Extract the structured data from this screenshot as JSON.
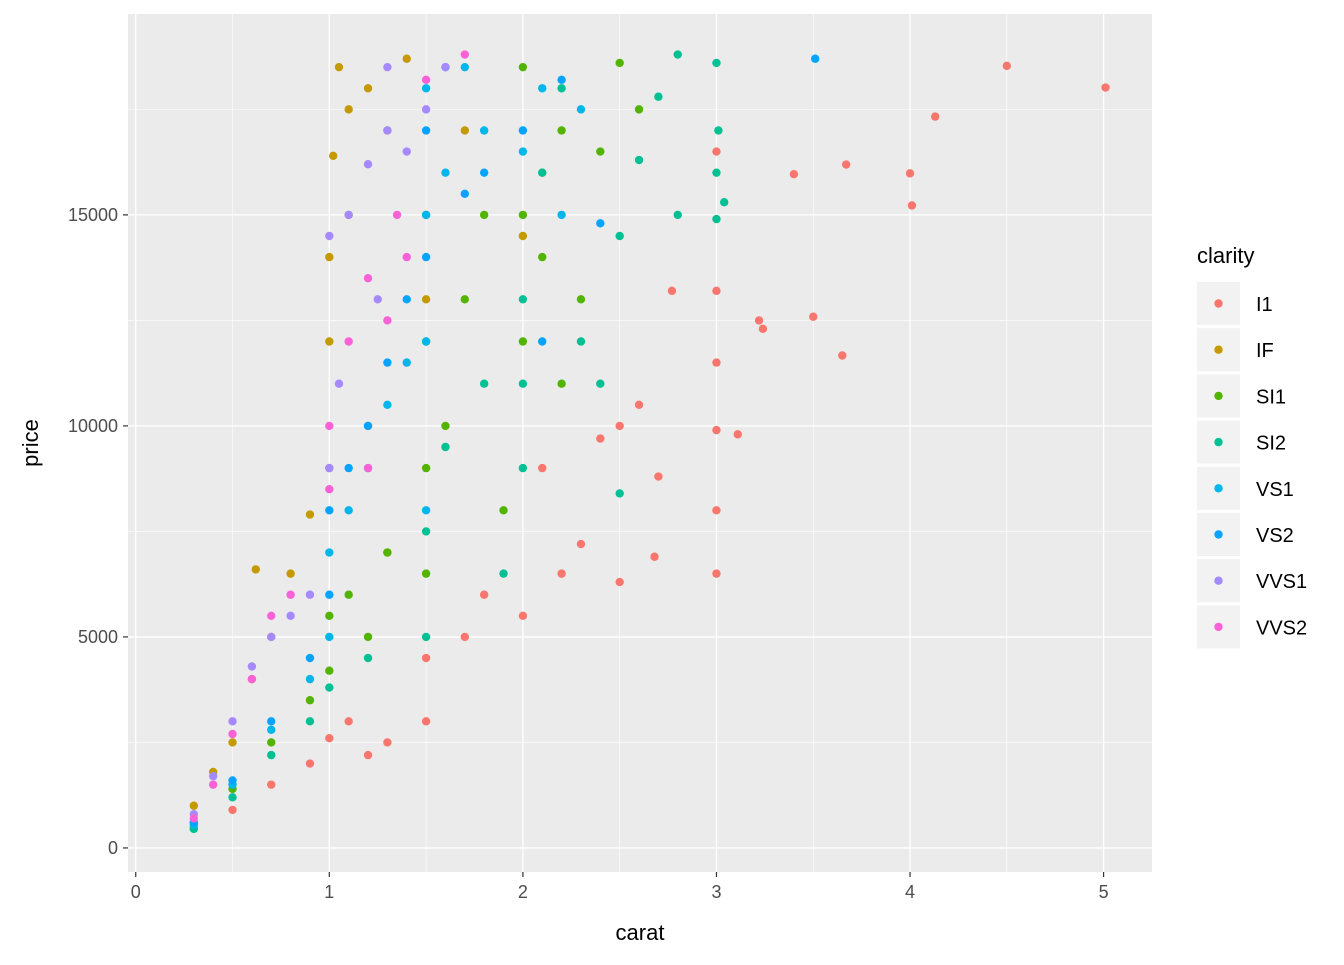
{
  "chart_data": {
    "type": "scatter",
    "title": "",
    "xlabel": "carat",
    "ylabel": "price",
    "xlim": [
      -0.04,
      5.25
    ],
    "ylim": [
      -570,
      19760
    ],
    "xticks": [
      0,
      1,
      2,
      3,
      4,
      5
    ],
    "yticks": [
      0,
      5000,
      10000,
      15000
    ],
    "grid": true,
    "legend": {
      "title": "clarity",
      "position": "right"
    },
    "series": [
      {
        "name": "I1",
        "color": "#F8766D",
        "points": [
          [
            0.3,
            500
          ],
          [
            0.5,
            900
          ],
          [
            0.7,
            1500
          ],
          [
            0.9,
            2000
          ],
          [
            1.0,
            2600
          ],
          [
            1.1,
            3000
          ],
          [
            1.2,
            2200
          ],
          [
            1.3,
            2500
          ],
          [
            1.5,
            3000
          ],
          [
            1.5,
            4500
          ],
          [
            1.7,
            5000
          ],
          [
            1.8,
            6000
          ],
          [
            2.0,
            5500
          ],
          [
            2.2,
            6500
          ],
          [
            2.3,
            7200
          ],
          [
            2.1,
            9000
          ],
          [
            2.4,
            9700
          ],
          [
            2.5,
            6300
          ],
          [
            2.5,
            10000
          ],
          [
            2.6,
            10500
          ],
          [
            2.68,
            6900
          ],
          [
            2.7,
            8800
          ],
          [
            2.77,
            13200
          ],
          [
            3.0,
            6500
          ],
          [
            3.0,
            8000
          ],
          [
            3.0,
            9900
          ],
          [
            3.0,
            11500
          ],
          [
            3.0,
            13200
          ],
          [
            3.0,
            16500
          ],
          [
            3.11,
            9800
          ],
          [
            3.22,
            12500
          ],
          [
            3.24,
            12300
          ],
          [
            3.4,
            15964
          ],
          [
            3.5,
            12587
          ],
          [
            3.65,
            11668
          ],
          [
            3.67,
            16193
          ],
          [
            4.0,
            15984
          ],
          [
            4.01,
            15223
          ],
          [
            4.13,
            17329
          ],
          [
            4.5,
            18531
          ],
          [
            5.01,
            18018
          ]
        ]
      },
      {
        "name": "IF",
        "color": "#C49A00",
        "points": [
          [
            0.3,
            1000
          ],
          [
            0.4,
            1800
          ],
          [
            0.5,
            2500
          ],
          [
            0.6,
            4000
          ],
          [
            0.62,
            6600
          ],
          [
            0.7,
            5000
          ],
          [
            0.8,
            6500
          ],
          [
            0.9,
            7900
          ],
          [
            1.0,
            9000
          ],
          [
            1.0,
            12000
          ],
          [
            1.0,
            14000
          ],
          [
            1.02,
            16400
          ],
          [
            1.05,
            18500
          ],
          [
            1.1,
            15000
          ],
          [
            1.1,
            17500
          ],
          [
            1.2,
            10000
          ],
          [
            1.2,
            18000
          ],
          [
            1.3,
            7000
          ],
          [
            1.3,
            17000
          ],
          [
            1.4,
            18700
          ],
          [
            1.5,
            13000
          ],
          [
            1.7,
            17000
          ],
          [
            2.0,
            14500
          ],
          [
            2.1,
            16000
          ]
        ]
      },
      {
        "name": "SI1",
        "color": "#53B400",
        "points": [
          [
            0.3,
            600
          ],
          [
            0.5,
            1400
          ],
          [
            0.7,
            2500
          ],
          [
            0.9,
            3500
          ],
          [
            1.0,
            4200
          ],
          [
            1.0,
            5500
          ],
          [
            1.1,
            6000
          ],
          [
            1.2,
            5000
          ],
          [
            1.3,
            7000
          ],
          [
            1.5,
            6500
          ],
          [
            1.5,
            9000
          ],
          [
            1.5,
            12000
          ],
          [
            1.5,
            15000
          ],
          [
            1.6,
            10000
          ],
          [
            1.7,
            13000
          ],
          [
            1.8,
            15000
          ],
          [
            1.9,
            8000
          ],
          [
            2.0,
            12000
          ],
          [
            2.0,
            15000
          ],
          [
            2.0,
            18500
          ],
          [
            2.1,
            14000
          ],
          [
            2.2,
            11000
          ],
          [
            2.2,
            17000
          ],
          [
            2.3,
            13000
          ],
          [
            2.4,
            16500
          ],
          [
            2.5,
            18600
          ],
          [
            2.6,
            17500
          ]
        ]
      },
      {
        "name": "SI2",
        "color": "#00C094",
        "points": [
          [
            0.3,
            450
          ],
          [
            0.5,
            1200
          ],
          [
            0.7,
            2200
          ],
          [
            0.9,
            3000
          ],
          [
            1.0,
            3800
          ],
          [
            1.2,
            4500
          ],
          [
            1.5,
            5000
          ],
          [
            1.5,
            7500
          ],
          [
            1.6,
            9500
          ],
          [
            1.8,
            11000
          ],
          [
            1.9,
            6500
          ],
          [
            2.0,
            9000
          ],
          [
            2.0,
            11000
          ],
          [
            2.0,
            13000
          ],
          [
            2.1,
            16000
          ],
          [
            2.2,
            18000
          ],
          [
            2.3,
            12000
          ],
          [
            2.4,
            11000
          ],
          [
            2.5,
            8400
          ],
          [
            2.5,
            14500
          ],
          [
            2.6,
            16300
          ],
          [
            2.7,
            17800
          ],
          [
            2.8,
            18800
          ],
          [
            2.8,
            15000
          ],
          [
            3.0,
            14900
          ],
          [
            3.0,
            16000
          ],
          [
            3.01,
            17000
          ],
          [
            3.04,
            15300
          ],
          [
            3.0,
            18600
          ]
        ]
      },
      {
        "name": "VS1",
        "color": "#00B6EB",
        "points": [
          [
            0.3,
            550
          ],
          [
            0.5,
            1500
          ],
          [
            0.7,
            2800
          ],
          [
            0.9,
            4000
          ],
          [
            1.0,
            5000
          ],
          [
            1.0,
            7000
          ],
          [
            1.1,
            8000
          ],
          [
            1.2,
            9000
          ],
          [
            1.3,
            10500
          ],
          [
            1.4,
            11500
          ],
          [
            1.5,
            8000
          ],
          [
            1.5,
            12000
          ],
          [
            1.5,
            15000
          ],
          [
            1.5,
            18000
          ],
          [
            1.6,
            16000
          ],
          [
            1.7,
            18500
          ],
          [
            1.8,
            17000
          ],
          [
            2.0,
            16500
          ],
          [
            2.1,
            18000
          ],
          [
            2.2,
            15000
          ],
          [
            2.3,
            17500
          ]
        ]
      },
      {
        "name": "VS2",
        "color": "#06A4FF",
        "points": [
          [
            0.3,
            600
          ],
          [
            0.5,
            1600
          ],
          [
            0.7,
            3000
          ],
          [
            0.9,
            4500
          ],
          [
            1.0,
            6000
          ],
          [
            1.0,
            8000
          ],
          [
            1.1,
            9000
          ],
          [
            1.2,
            10000
          ],
          [
            1.3,
            11500
          ],
          [
            1.4,
            13000
          ],
          [
            1.5,
            14000
          ],
          [
            1.5,
            17000
          ],
          [
            1.6,
            18500
          ],
          [
            1.7,
            15500
          ],
          [
            1.8,
            16000
          ],
          [
            2.0,
            17000
          ],
          [
            2.1,
            12000
          ],
          [
            2.2,
            18200
          ],
          [
            2.4,
            14800
          ],
          [
            3.51,
            18700
          ]
        ]
      },
      {
        "name": "VVS1",
        "color": "#A58AFF",
        "points": [
          [
            0.3,
            800
          ],
          [
            0.4,
            1700
          ],
          [
            0.5,
            3000
          ],
          [
            0.6,
            4300
          ],
          [
            0.7,
            5000
          ],
          [
            0.8,
            5500
          ],
          [
            0.9,
            6000
          ],
          [
            1.0,
            9000
          ],
          [
            1.0,
            14500
          ],
          [
            1.05,
            11000
          ],
          [
            1.1,
            15000
          ],
          [
            1.2,
            16200
          ],
          [
            1.25,
            13000
          ],
          [
            1.3,
            17000
          ],
          [
            1.3,
            18500
          ],
          [
            1.4,
            16500
          ],
          [
            1.5,
            17500
          ],
          [
            1.6,
            18500
          ]
        ]
      },
      {
        "name": "VVS2",
        "color": "#FB61D7",
        "points": [
          [
            0.3,
            700
          ],
          [
            0.4,
            1500
          ],
          [
            0.5,
            2700
          ],
          [
            0.6,
            4000
          ],
          [
            0.7,
            5500
          ],
          [
            0.8,
            6000
          ],
          [
            1.0,
            8500
          ],
          [
            1.0,
            10000
          ],
          [
            1.1,
            12000
          ],
          [
            1.2,
            9000
          ],
          [
            1.2,
            13500
          ],
          [
            1.3,
            12500
          ],
          [
            1.35,
            15000
          ],
          [
            1.4,
            14000
          ],
          [
            1.5,
            18200
          ],
          [
            1.7,
            18800
          ]
        ]
      }
    ]
  }
}
